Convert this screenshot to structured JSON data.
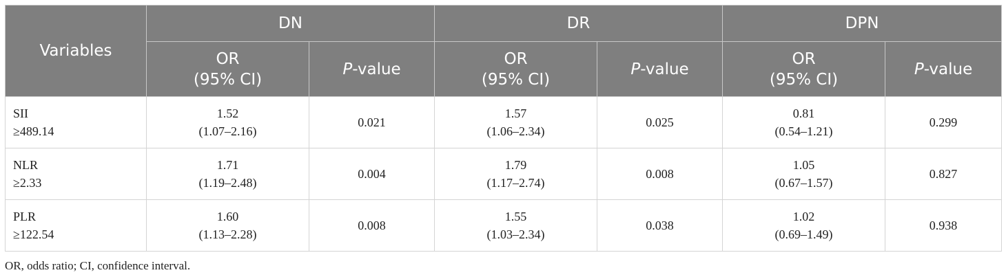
{
  "table": {
    "variables_header": "Variables",
    "groups": [
      "DN",
      "DR",
      "DPN"
    ],
    "subheaders": {
      "or_line1": "OR",
      "or_line2": "(95% CI)",
      "p_italic": "P",
      "p_rest": "-value"
    },
    "rows": [
      {
        "var_line1": "SII",
        "var_line2": "≥489.14",
        "dn": {
          "or": "1.52",
          "ci": "(1.07–2.16)",
          "p": "0.021"
        },
        "dr": {
          "or": "1.57",
          "ci": "(1.06–2.34)",
          "p": "0.025"
        },
        "dpn": {
          "or": "0.81",
          "ci": "(0.54–1.21)",
          "p": "0.299"
        }
      },
      {
        "var_line1": "NLR",
        "var_line2": "≥2.33",
        "dn": {
          "or": "1.71",
          "ci": "(1.19–2.48)",
          "p": "0.004"
        },
        "dr": {
          "or": "1.79",
          "ci": "(1.17–2.74)",
          "p": "0.008"
        },
        "dpn": {
          "or": "1.05",
          "ci": "(0.67–1.57)",
          "p": "0.827"
        }
      },
      {
        "var_line1": "PLR",
        "var_line2": "≥122.54",
        "dn": {
          "or": "1.60",
          "ci": "(1.13–2.28)",
          "p": "0.008"
        },
        "dr": {
          "or": "1.55",
          "ci": "(1.03–2.34)",
          "p": "0.038"
        },
        "dpn": {
          "or": "1.02",
          "ci": "(0.69–1.49)",
          "p": "0.938"
        }
      }
    ]
  },
  "footnote": "OR, odds ratio; CI, confidence interval.",
  "colors": {
    "header_bg": "#7f7f7f",
    "header_text": "#ffffff",
    "body_text": "#222222"
  }
}
